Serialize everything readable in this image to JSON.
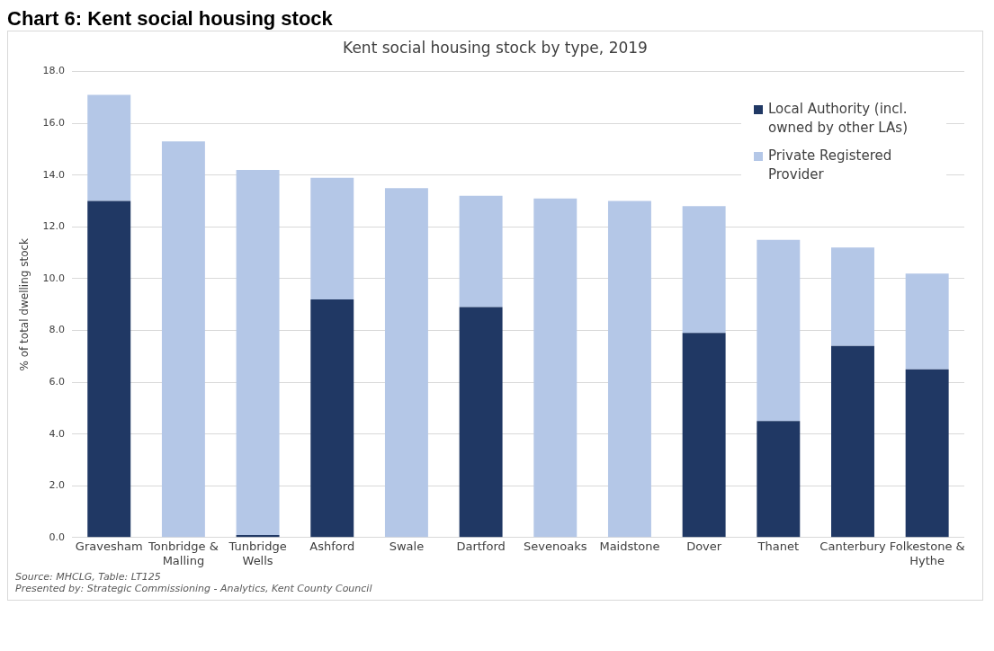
{
  "chart_data": {
    "type": "bar",
    "title": "Chart 6: Kent social housing stock",
    "subtitle": "Kent social housing stock by type, 2019",
    "ylabel": "% of total dwelling stock",
    "categories": [
      "Gravesham",
      "Tonbridge & Malling",
      "Tunbridge Wells",
      "Ashford",
      "Swale",
      "Dartford",
      "Sevenoaks",
      "Maidstone",
      "Dover",
      "Thanet",
      "Canterbury",
      "Folkestone & Hythe"
    ],
    "stacked": true,
    "series": [
      {
        "name": "Local Authority (incl. owned by other LAs)",
        "color": "#203864",
        "values": [
          13.0,
          0,
          0.1,
          9.2,
          0,
          8.9,
          0,
          0,
          7.9,
          4.5,
          7.4,
          6.5
        ]
      },
      {
        "name": "Private Registered Provider",
        "color": "#b4c7e7",
        "values": [
          4.1,
          15.3,
          14.1,
          4.7,
          13.5,
          4.3,
          13.1,
          13.0,
          4.9,
          7.0,
          3.8,
          3.7
        ]
      }
    ],
    "ylim": [
      0,
      18
    ],
    "yticks": [
      {
        "value": 0,
        "label": "0.0"
      },
      {
        "value": 2,
        "label": "2.0"
      },
      {
        "value": 4,
        "label": "4.0"
      },
      {
        "value": 6,
        "label": "6.0"
      },
      {
        "value": 8,
        "label": "8.0"
      },
      {
        "value": 10,
        "label": "10.0"
      },
      {
        "value": 12,
        "label": "12.0"
      },
      {
        "value": 14,
        "label": "14.0"
      },
      {
        "value": 16,
        "label": "16.0"
      },
      {
        "value": 18,
        "label": "18.0"
      }
    ],
    "grid": "y",
    "legend": "top right",
    "annotations": [
      "Source: MHCLG, Table: LT125",
      "Presented by: Strategic Commissioning - Analytics, Kent County Council"
    ]
  }
}
